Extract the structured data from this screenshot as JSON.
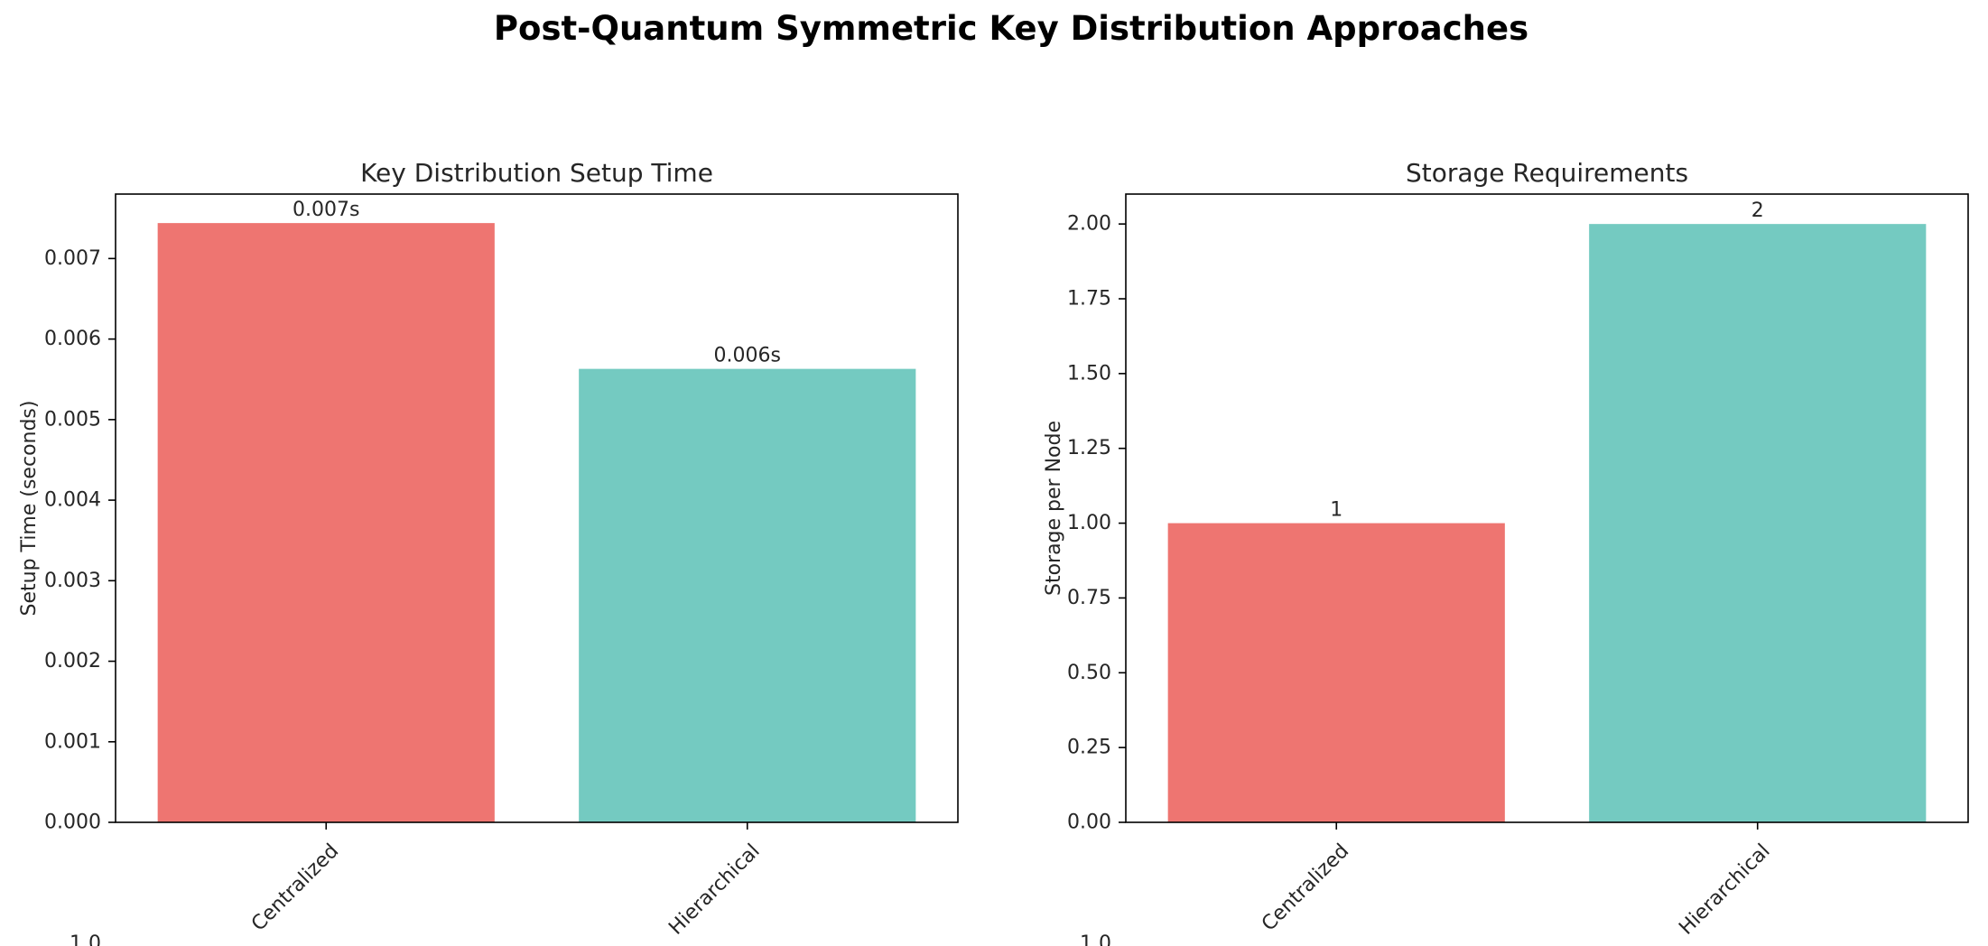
{
  "suptitle": "Post-Quantum Symmetric Key Distribution Approaches",
  "colors": {
    "centralized": "#EE7571",
    "hierarchical": "#74CAC1",
    "axis": "#000000",
    "text": "#262626"
  },
  "chart_data": [
    {
      "type": "bar",
      "title": "Key Distribution Setup Time",
      "xlabel": "",
      "ylabel": "Setup Time (seconds)",
      "categories": [
        "Centralized",
        "Hierarchical"
      ],
      "values": [
        0.00744,
        0.00563
      ],
      "data_labels": [
        "0.007s",
        "0.006s"
      ],
      "ylim": [
        0,
        0.0078
      ],
      "yticks": [
        0.0,
        0.001,
        0.002,
        0.003,
        0.004,
        0.005,
        0.006,
        0.007
      ],
      "ytick_labels": [
        "0.000",
        "0.001",
        "0.002",
        "0.003",
        "0.004",
        "0.005",
        "0.006",
        "0.007"
      ],
      "grid": false,
      "bar_colors": [
        "#EE7571",
        "#74CAC1"
      ]
    },
    {
      "type": "bar",
      "title": "Storage Requirements",
      "xlabel": "",
      "ylabel": "Storage per Node",
      "categories": [
        "Centralized",
        "Hierarchical"
      ],
      "values": [
        1,
        2
      ],
      "data_labels": [
        "1",
        "2"
      ],
      "ylim": [
        0,
        2.1
      ],
      "yticks": [
        0.0,
        0.25,
        0.5,
        0.75,
        1.0,
        1.25,
        1.5,
        1.75,
        2.0
      ],
      "ytick_labels": [
        "0.00",
        "0.25",
        "0.50",
        "0.75",
        "1.00",
        "1.25",
        "1.50",
        "1.75",
        "2.00"
      ],
      "grid": false,
      "bar_colors": [
        "#EE7571",
        "#74CAC1"
      ]
    }
  ],
  "clipped_lower_ticks": [
    "1.0",
    "1.0"
  ]
}
